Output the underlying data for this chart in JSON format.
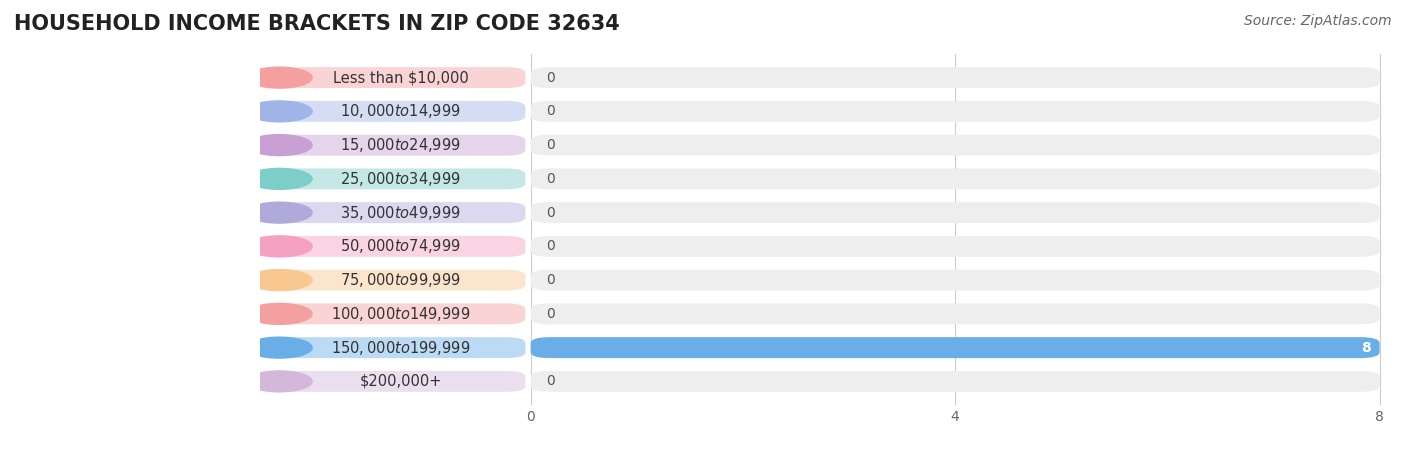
{
  "title": "HOUSEHOLD INCOME BRACKETS IN ZIP CODE 32634",
  "source": "Source: ZipAtlas.com",
  "categories": [
    "Less than $10,000",
    "$10,000 to $14,999",
    "$15,000 to $24,999",
    "$25,000 to $34,999",
    "$35,000 to $49,999",
    "$50,000 to $74,999",
    "$75,000 to $99,999",
    "$100,000 to $149,999",
    "$150,000 to $199,999",
    "$200,000+"
  ],
  "values": [
    0,
    0,
    0,
    0,
    0,
    0,
    0,
    0,
    8,
    0
  ],
  "bar_colors": [
    "#f4a0a0",
    "#a0b4e8",
    "#c8a0d4",
    "#7dcec8",
    "#b0aadc",
    "#f4a0c0",
    "#f8c890",
    "#f4a0a0",
    "#6aaee8",
    "#d4b8dc"
  ],
  "label_bg_colors": [
    "#f4a0a0",
    "#a0b4e8",
    "#c8a0d4",
    "#7dcec8",
    "#b0aadc",
    "#f4a0c0",
    "#f8c890",
    "#f4a0a0",
    "#6aaee8",
    "#d4b8dc"
  ],
  "xlim": [
    0,
    8
  ],
  "xticks": [
    0,
    4,
    8
  ],
  "background_color": "#ffffff",
  "bar_bg_color": "#eeeeee",
  "title_fontsize": 15,
  "label_fontsize": 10.5,
  "value_fontsize": 10,
  "source_fontsize": 10
}
